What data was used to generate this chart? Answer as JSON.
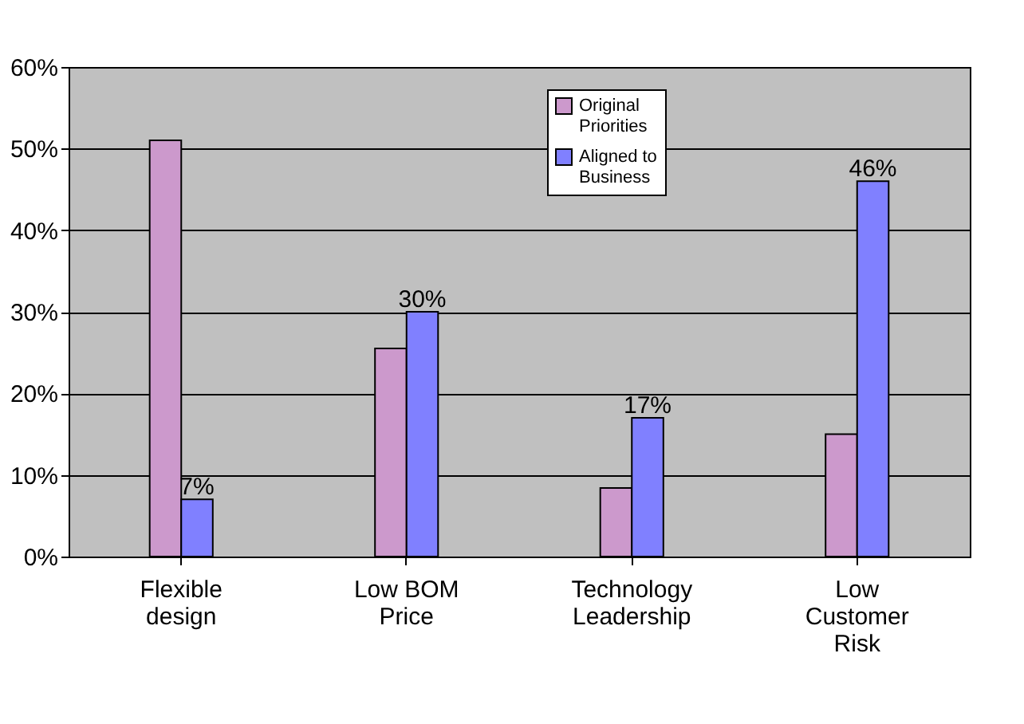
{
  "chart_data": {
    "type": "bar",
    "categories": [
      "Flexible design",
      "Low BOM Price",
      "Technology Leadership",
      "Low Customer Risk"
    ],
    "series": [
      {
        "name": "Original Priorities",
        "color": "#cc99cc",
        "values": [
          51,
          25.5,
          8.4,
          15
        ]
      },
      {
        "name": "Aligned to Business",
        "color": "#8080ff",
        "values": [
          7,
          30,
          17,
          46
        ],
        "value_labels": [
          "7%",
          "30%",
          "17%",
          "46%"
        ]
      }
    ],
    "ylim": [
      0,
      60
    ],
    "yticks": [
      {
        "value": 0,
        "label": "0%"
      },
      {
        "value": 10,
        "label": "10%"
      },
      {
        "value": 20,
        "label": "20%"
      },
      {
        "value": 30,
        "label": "30%"
      },
      {
        "value": 40,
        "label": "40%"
      },
      {
        "value": 50,
        "label": "50%"
      },
      {
        "value": 60,
        "label": "60%"
      }
    ],
    "grid": "y",
    "legend": "top right"
  }
}
